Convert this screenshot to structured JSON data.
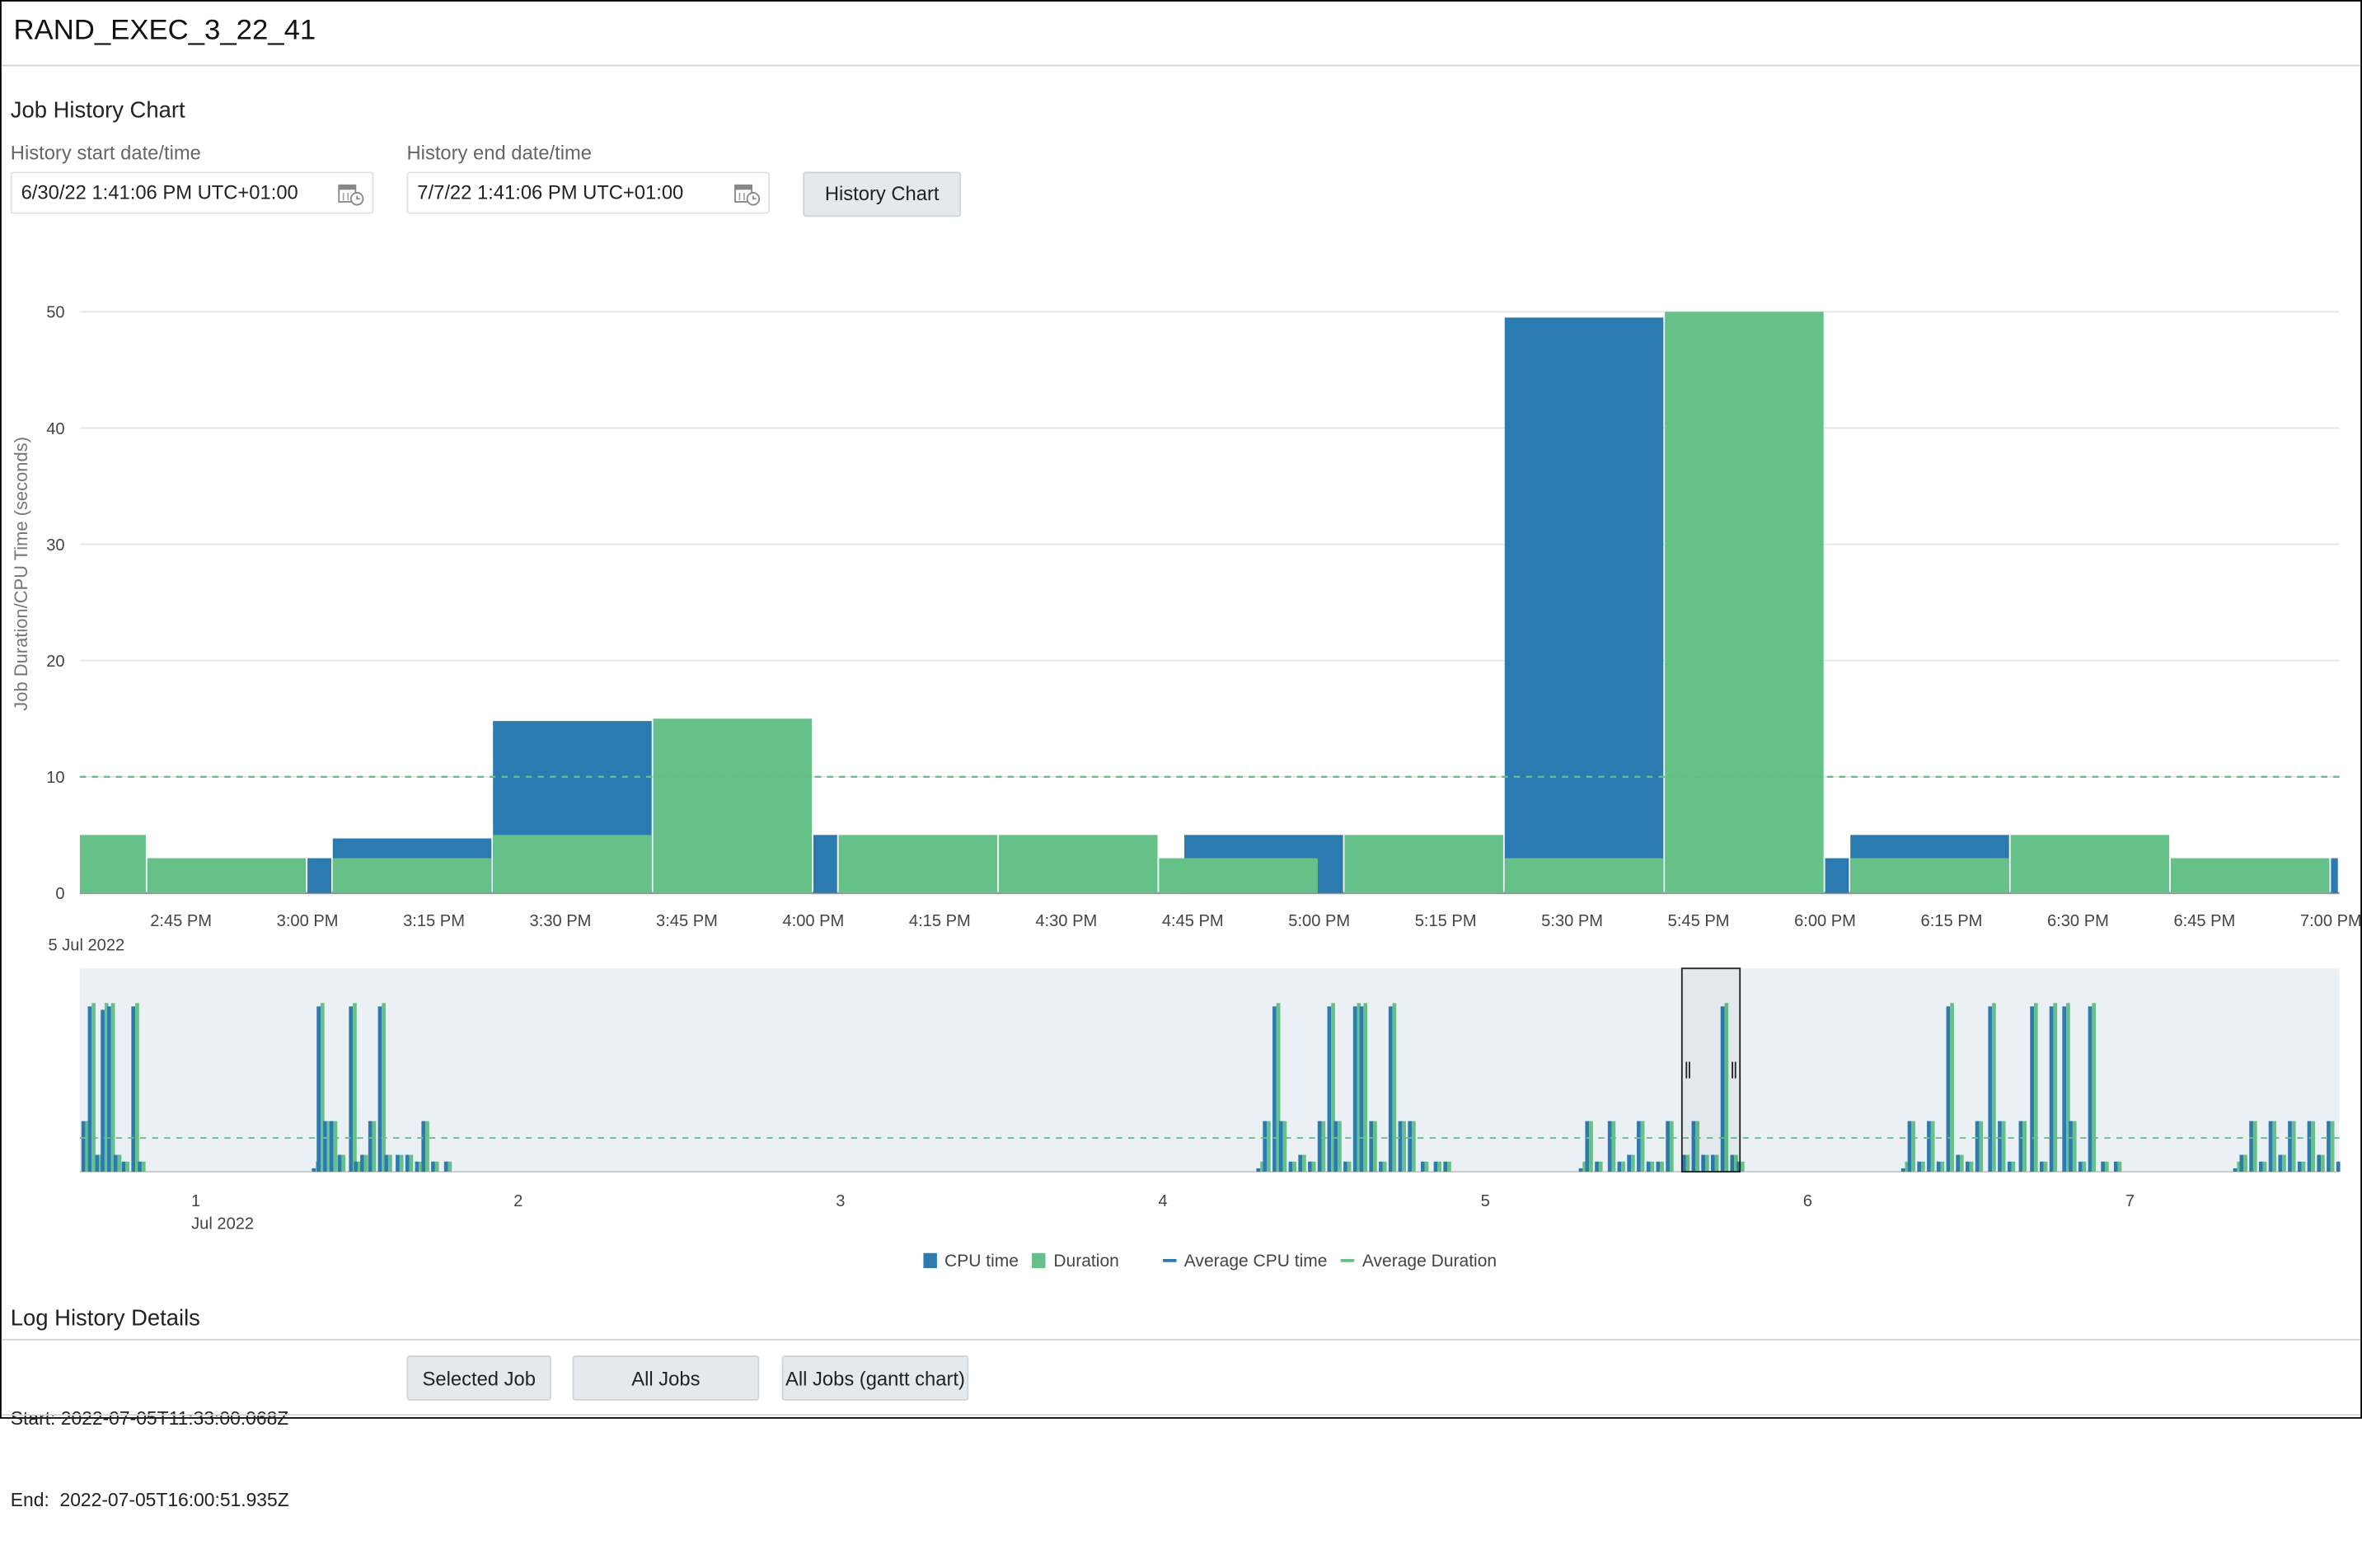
{
  "header": {
    "title": "RAND_EXEC_3_22_41"
  },
  "job_history": {
    "heading": "Job History Chart",
    "start_label": "History start date/time",
    "start_value": "6/30/22 1:41:06 PM UTC+01:00",
    "end_label": "History end date/time",
    "end_value": "7/7/22 1:41:06 PM UTC+01:00",
    "history_chart_button": "History Chart"
  },
  "colors": {
    "cpu": "#2b7bb0",
    "duration": "#66c188",
    "navigator_bg": "#ebf0f5",
    "grid": "#e6e6e6"
  },
  "chart_data": [
    {
      "type": "bar",
      "ylabel": "Job Duration/CPU Time (seconds)",
      "ylim": [
        0,
        50
      ],
      "yticks": [
        "0",
        "10",
        "20",
        "30",
        "40",
        "50"
      ],
      "xrange": [
        "2:33 PM",
        "7:01 PM"
      ],
      "xticks": [
        "2:45 PM",
        "3:00 PM",
        "3:15 PM",
        "3:30 PM",
        "3:45 PM",
        "4:00 PM",
        "4:15 PM",
        "4:30 PM",
        "4:45 PM",
        "5:00 PM",
        "5:15 PM",
        "5:30 PM",
        "5:45 PM",
        "6:00 PM",
        "6:15 PM",
        "6:30 PM",
        "6:45 PM",
        "7:00 PM"
      ],
      "date_label": "5 Jul 2022",
      "grid": true,
      "average_cpu_time": 10,
      "average_duration": 10,
      "bars": [
        {
          "series": "duration",
          "start": "2:33 PM",
          "end": "2:41 PM",
          "value": 5
        },
        {
          "series": "duration",
          "start": "2:41 PM",
          "end": "3:00 PM",
          "value": 3
        },
        {
          "series": "cpu",
          "start": "3:00 PM",
          "end": "3:03 PM",
          "value": 3
        },
        {
          "series": "cpu",
          "start": "3:03 PM",
          "end": "3:22 PM",
          "value": 4.7
        },
        {
          "series": "duration",
          "start": "3:03 PM",
          "end": "3:22 PM",
          "value": 3
        },
        {
          "series": "cpu",
          "start": "3:22 PM",
          "end": "3:41 PM",
          "value": 14.8
        },
        {
          "series": "duration",
          "start": "3:22 PM",
          "end": "3:41 PM",
          "value": 5
        },
        {
          "series": "duration",
          "start": "3:41 PM",
          "end": "4:00 PM",
          "value": 15
        },
        {
          "series": "cpu",
          "start": "4:00 PM",
          "end": "4:03 PM",
          "value": 5
        },
        {
          "series": "duration",
          "start": "4:03 PM",
          "end": "4:22 PM",
          "value": 5
        },
        {
          "series": "duration",
          "start": "4:22 PM",
          "end": "4:41 PM",
          "value": 5
        },
        {
          "series": "cpu",
          "start": "4:44 PM",
          "end": "5:03 PM",
          "value": 5
        },
        {
          "series": "duration",
          "start": "4:41 PM",
          "end": "5:00 PM",
          "value": 3
        },
        {
          "series": "duration",
          "start": "5:03 PM",
          "end": "5:22 PM",
          "value": 5
        },
        {
          "series": "cpu",
          "start": "5:22 PM",
          "end": "5:41 PM",
          "value": 49.5
        },
        {
          "series": "duration",
          "start": "5:22 PM",
          "end": "5:41 PM",
          "value": 3
        },
        {
          "series": "duration",
          "start": "5:41 PM",
          "end": "6:00 PM",
          "value": 50
        },
        {
          "series": "cpu",
          "start": "6:00 PM",
          "end": "6:03 PM",
          "value": 3
        },
        {
          "series": "cpu",
          "start": "6:03 PM",
          "end": "6:22 PM",
          "value": 5
        },
        {
          "series": "duration",
          "start": "6:03 PM",
          "end": "6:22 PM",
          "value": 3
        },
        {
          "series": "duration",
          "start": "6:22 PM",
          "end": "6:41 PM",
          "value": 5
        },
        {
          "series": "duration",
          "start": "6:41 PM",
          "end": "7:00 PM",
          "value": 3
        },
        {
          "series": "cpu",
          "start": "7:00 PM",
          "end": "7:01 PM",
          "value": 3
        }
      ]
    },
    {
      "type": "bar",
      "xticks": [
        "1",
        "2",
        "3",
        "4",
        "5",
        "6",
        "7"
      ],
      "month_label": "Jul 2022",
      "ylim": [
        0,
        50
      ],
      "average_duration": 10,
      "selected_range_days": [
        5.61,
        5.79
      ],
      "points_columns": [
        "day",
        "cpu",
        "duration"
      ],
      "points": [
        [
          0.645,
          15,
          15
        ],
        [
          0.665,
          49,
          50
        ],
        [
          0.688,
          5,
          5
        ],
        [
          0.705,
          48,
          50
        ],
        [
          0.725,
          49,
          50
        ],
        [
          0.745,
          5,
          5
        ],
        [
          0.77,
          3,
          3
        ],
        [
          0.8,
          49,
          50
        ],
        [
          0.82,
          3,
          3
        ],
        [
          1.36,
          1,
          3
        ],
        [
          1.375,
          49,
          50
        ],
        [
          1.395,
          15,
          15
        ],
        [
          1.415,
          15,
          15
        ],
        [
          1.44,
          5,
          5
        ],
        [
          1.475,
          49,
          50
        ],
        [
          1.49,
          3,
          3
        ],
        [
          1.51,
          5,
          5
        ],
        [
          1.535,
          15,
          15
        ],
        [
          1.565,
          49,
          50
        ],
        [
          1.585,
          5,
          5
        ],
        [
          1.62,
          5,
          5
        ],
        [
          1.65,
          5,
          5
        ],
        [
          1.68,
          3,
          3
        ],
        [
          1.7,
          15,
          15
        ],
        [
          1.73,
          3,
          3
        ],
        [
          1.77,
          3,
          3
        ],
        [
          4.29,
          1,
          3
        ],
        [
          4.31,
          15,
          15
        ],
        [
          4.34,
          49,
          50
        ],
        [
          4.36,
          15,
          15
        ],
        [
          4.39,
          3,
          3
        ],
        [
          4.42,
          5,
          5
        ],
        [
          4.45,
          3,
          3
        ],
        [
          4.48,
          15,
          15
        ],
        [
          4.51,
          49,
          50
        ],
        [
          4.53,
          15,
          15
        ],
        [
          4.56,
          3,
          3
        ],
        [
          4.59,
          49,
          50
        ],
        [
          4.61,
          49,
          50
        ],
        [
          4.64,
          15,
          15
        ],
        [
          4.67,
          3,
          3
        ],
        [
          4.7,
          49,
          50
        ],
        [
          4.73,
          15,
          15
        ],
        [
          4.76,
          15,
          15
        ],
        [
          4.8,
          3,
          3
        ],
        [
          4.84,
          3,
          3
        ],
        [
          4.87,
          3,
          3
        ],
        [
          5.29,
          1,
          3
        ],
        [
          5.31,
          15,
          15
        ],
        [
          5.34,
          3,
          3
        ],
        [
          5.38,
          15,
          15
        ],
        [
          5.41,
          3,
          3
        ],
        [
          5.44,
          5,
          5
        ],
        [
          5.47,
          15,
          15
        ],
        [
          5.5,
          3,
          3
        ],
        [
          5.53,
          3,
          3
        ],
        [
          5.56,
          15,
          15
        ],
        [
          5.61,
          5,
          5
        ],
        [
          5.64,
          15,
          15
        ],
        [
          5.67,
          5,
          5
        ],
        [
          5.7,
          5,
          5
        ],
        [
          5.73,
          49,
          50
        ],
        [
          5.76,
          5,
          5
        ],
        [
          5.78,
          3,
          3
        ],
        [
          6.29,
          1,
          3
        ],
        [
          6.31,
          15,
          15
        ],
        [
          6.34,
          3,
          3
        ],
        [
          6.37,
          15,
          15
        ],
        [
          6.4,
          3,
          3
        ],
        [
          6.43,
          49,
          50
        ],
        [
          6.46,
          5,
          5
        ],
        [
          6.49,
          3,
          3
        ],
        [
          6.52,
          15,
          15
        ],
        [
          6.56,
          49,
          50
        ],
        [
          6.59,
          15,
          15
        ],
        [
          6.62,
          3,
          3
        ],
        [
          6.655,
          15,
          15
        ],
        [
          6.69,
          49,
          50
        ],
        [
          6.72,
          3,
          3
        ],
        [
          6.75,
          49,
          50
        ],
        [
          6.79,
          49,
          50
        ],
        [
          6.81,
          15,
          15
        ],
        [
          6.84,
          3,
          3
        ],
        [
          6.87,
          49,
          50
        ],
        [
          6.91,
          3,
          3
        ],
        [
          6.95,
          3,
          3
        ],
        [
          7.32,
          1,
          3
        ],
        [
          7.34,
          5,
          5
        ],
        [
          7.37,
          15,
          15
        ],
        [
          7.4,
          3,
          3
        ],
        [
          7.43,
          15,
          15
        ],
        [
          7.46,
          5,
          5
        ],
        [
          7.49,
          15,
          15
        ],
        [
          7.52,
          3,
          3
        ],
        [
          7.55,
          15,
          15
        ],
        [
          7.58,
          5,
          5
        ],
        [
          7.61,
          15,
          15
        ],
        [
          7.64,
          3,
          3
        ]
      ]
    }
  ],
  "legend": {
    "cpu": "CPU time",
    "duration": "Duration",
    "avg_cpu": "Average CPU time",
    "avg_duration": "Average Duration"
  },
  "log_history": {
    "heading": "Log History Details",
    "start": "Start: 2022-07-05T11:33:00.068Z",
    "end": "End:  2022-07-05T16:00:51.935Z",
    "selected_job_button": "Selected Job",
    "all_jobs_button": "All Jobs",
    "gantt_button": "All Jobs (gantt chart)"
  }
}
